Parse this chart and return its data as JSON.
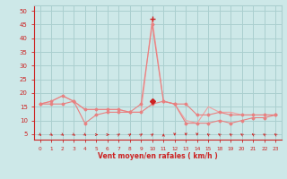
{
  "x_labels": [
    0,
    1,
    2,
    3,
    4,
    5,
    6,
    7,
    8,
    9,
    10,
    11,
    12,
    13,
    14,
    15,
    18,
    19,
    20,
    21,
    22,
    23
  ],
  "n_points": 22,
  "line1_y": [
    16,
    17,
    19,
    17,
    14,
    14,
    14,
    14,
    13,
    13,
    16,
    17,
    16,
    16,
    12,
    12,
    13,
    12,
    12,
    12,
    12,
    12
  ],
  "line2_y": [
    16,
    16,
    16,
    17,
    9,
    12,
    13,
    13,
    13,
    16,
    45,
    17,
    16,
    9,
    9,
    9,
    10,
    9,
    10,
    11,
    11,
    12
  ],
  "line3_y": [
    16,
    17,
    19,
    17,
    14,
    14,
    14,
    14,
    13,
    13,
    47,
    17,
    16,
    10,
    9,
    15,
    13,
    13,
    12,
    12,
    12,
    12
  ],
  "peak1_idx": 10,
  "peak1_val": 47,
  "peak2_idx": 10,
  "peak2_val": 17,
  "bg_color": "#cde8e8",
  "grid_color": "#aacfcf",
  "line_color1": "#e88080",
  "line_color2": "#e88080",
  "line_color3": "#f0a0a0",
  "marker_color": "#cc2222",
  "xlabel": "Vent moyen/en rafales ( km/h )",
  "ylabel_ticks": [
    5,
    10,
    15,
    20,
    25,
    30,
    35,
    40,
    45,
    50
  ],
  "ylim": [
    3,
    52
  ],
  "arrow_angles": [
    45,
    45,
    45,
    45,
    45,
    90,
    90,
    135,
    135,
    135,
    135,
    180,
    0,
    0,
    0,
    225,
    225,
    225,
    225,
    225,
    225,
    225
  ],
  "tick_color": "#cc2222",
  "xlabel_color": "#cc2222"
}
